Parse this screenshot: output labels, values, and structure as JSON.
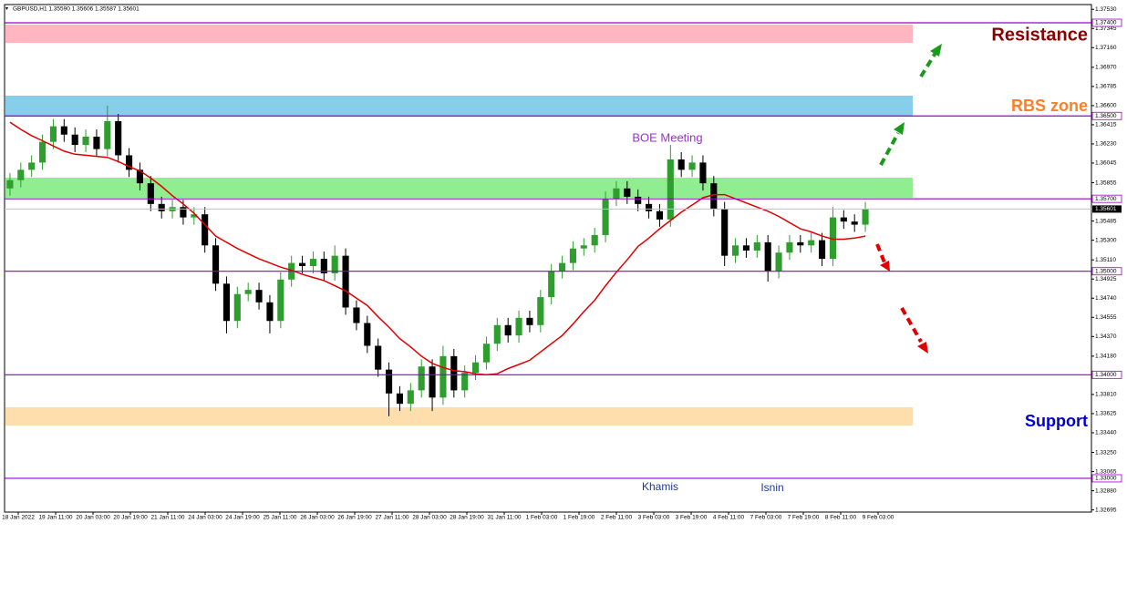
{
  "chart_data": {
    "type": "candlestick",
    "header": "GBPUSD,H1  1.35590 1.35606 1.35587 1.35601",
    "ylim": [
      1.32674,
      1.37576
    ],
    "yticks": [
      {
        "value": 1.3753,
        "label": "1.37530"
      },
      {
        "value": 1.37345,
        "label": "1.37345"
      },
      {
        "value": 1.3716,
        "label": "1.37160"
      },
      {
        "value": 1.3697,
        "label": "1.36970"
      },
      {
        "value": 1.36785,
        "label": "1.36785"
      },
      {
        "value": 1.366,
        "label": "1.36600"
      },
      {
        "value": 1.36415,
        "label": "1.36415"
      },
      {
        "value": 1.3623,
        "label": "1.36230"
      },
      {
        "value": 1.36045,
        "label": "1.36045"
      },
      {
        "value": 1.35855,
        "label": "1.35855"
      },
      {
        "value": 1.35485,
        "label": "1.35485"
      },
      {
        "value": 1.353,
        "label": "1.35300"
      },
      {
        "value": 1.3511,
        "label": "1.35110"
      },
      {
        "value": 1.34925,
        "label": "1.34925"
      },
      {
        "value": 1.3474,
        "label": "1.34740"
      },
      {
        "value": 1.34555,
        "label": "1.34555"
      },
      {
        "value": 1.3437,
        "label": "1.34370"
      },
      {
        "value": 1.3418,
        "label": "1.34180"
      },
      {
        "value": 1.3381,
        "label": "1.33810"
      },
      {
        "value": 1.33625,
        "label": "1.33625"
      },
      {
        "value": 1.3344,
        "label": "1.33440"
      },
      {
        "value": 1.3325,
        "label": "1.33250"
      },
      {
        "value": 1.33065,
        "label": "1.33065"
      },
      {
        "value": 1.3288,
        "label": "1.32880"
      },
      {
        "value": 1.32695,
        "label": "1.32695"
      }
    ],
    "x_labels": [
      "18 Jan 2022",
      "19 Jan 11:00",
      "20 Jan 03:00",
      "20 Jan 19:00",
      "21 Jan 11:00",
      "24 Jan 03:00",
      "24 Jan 19:00",
      "25 Jan 11:00",
      "26 Jan 03:00",
      "26 Jan 19:00",
      "27 Jan 11:00",
      "28 Jan 03:00",
      "28 Jan 19:00",
      "31 Jan 11:00",
      "1 Feb 03:00",
      "1 Feb 19:00",
      "2 Feb 11:00",
      "3 Feb 03:00",
      "3 Feb 19:00",
      "4 Feb 11:00",
      "7 Feb 03:00",
      "7 Feb 19:00",
      "8 Feb 11:00",
      "9 Feb 03:00"
    ],
    "levels": [
      {
        "value": 1.374,
        "label": "1.37400"
      },
      {
        "value": 1.365,
        "label": "1.36500"
      },
      {
        "value": 1.357,
        "label": "1.35700"
      },
      {
        "value": 1.35,
        "label": "1.35000"
      },
      {
        "value": 1.34,
        "label": "1.34000"
      },
      {
        "value": 1.33,
        "label": "1.33000"
      }
    ],
    "level_color": "#9900cc",
    "current_price": {
      "value": 1.35601,
      "label": "1.35601"
    },
    "zones": [
      {
        "from": 1.37206,
        "to": 1.37382,
        "color": "#ffb6c1"
      },
      {
        "from": 1.36493,
        "to": 1.36696,
        "color": "#87ceeb"
      },
      {
        "from": 1.3571,
        "to": 1.35904,
        "color": "#90ee90"
      },
      {
        "from": 1.3351,
        "to": 1.33686,
        "color": "#ffdead"
      }
    ],
    "up_color": "#2e9e2e",
    "down_color": "#000000",
    "ma_color": "#e00000",
    "open": [
      1.358,
      1.3588,
      1.3598,
      1.3605,
      1.3625,
      1.364,
      1.3632,
      1.3622,
      1.363,
      1.3618,
      1.3645,
      1.3612,
      1.3598,
      1.3585,
      1.3565,
      1.3558,
      1.3562,
      1.3552,
      1.3555,
      1.3525,
      1.3488,
      1.3452,
      1.3478,
      1.3482,
      1.347,
      1.3452,
      1.3492,
      1.3508,
      1.3505,
      1.3512,
      1.3498,
      1.3515,
      1.3465,
      1.345,
      1.3428,
      1.3405,
      1.3382,
      1.3372,
      1.3385,
      1.3408,
      1.3378,
      1.3418,
      1.3385,
      1.3402,
      1.3412,
      1.343,
      1.3448,
      1.3438,
      1.3455,
      1.3448,
      1.3475,
      1.35,
      1.3508,
      1.3522,
      1.3525,
      1.3535,
      1.357,
      1.358,
      1.3572,
      1.3565,
      1.3558,
      1.355,
      1.3608,
      1.3598,
      1.3605,
      1.3585,
      1.356,
      1.3515,
      1.3525,
      1.352,
      1.3528,
      1.35,
      1.3518,
      1.3528,
      1.3525,
      1.353,
      1.3512,
      1.3552,
      1.3548,
      1.3545
    ],
    "high": [
      1.3595,
      1.3605,
      1.3612,
      1.3632,
      1.3647,
      1.3647,
      1.3639,
      1.3637,
      1.3637,
      1.366,
      1.3652,
      1.3619,
      1.3605,
      1.3592,
      1.3572,
      1.3569,
      1.3569,
      1.3562,
      1.3562,
      1.3532,
      1.3495,
      1.3485,
      1.3489,
      1.3489,
      1.3477,
      1.3499,
      1.3515,
      1.3515,
      1.3519,
      1.3519,
      1.3525,
      1.3522,
      1.3472,
      1.3457,
      1.3435,
      1.3412,
      1.3389,
      1.3392,
      1.3415,
      1.3415,
      1.3428,
      1.3425,
      1.3409,
      1.3419,
      1.3437,
      1.3455,
      1.3455,
      1.3462,
      1.3462,
      1.3482,
      1.3507,
      1.3515,
      1.3529,
      1.3532,
      1.3542,
      1.3577,
      1.3587,
      1.3587,
      1.3579,
      1.3572,
      1.3565,
      1.3622,
      1.3615,
      1.3612,
      1.3612,
      1.3592,
      1.3567,
      1.3532,
      1.3532,
      1.3535,
      1.3535,
      1.3525,
      1.3535,
      1.3535,
      1.3537,
      1.3537,
      1.3562,
      1.3559,
      1.3555,
      1.3567
    ],
    "low": [
      1.3573,
      1.3581,
      1.3591,
      1.3598,
      1.3618,
      1.3625,
      1.3615,
      1.3615,
      1.3611,
      1.3611,
      1.3605,
      1.3591,
      1.3578,
      1.3558,
      1.3551,
      1.3551,
      1.3545,
      1.3545,
      1.3518,
      1.3481,
      1.344,
      1.3445,
      1.3471,
      1.3463,
      1.344,
      1.3445,
      1.3485,
      1.3498,
      1.3498,
      1.3491,
      1.3491,
      1.3458,
      1.3443,
      1.3421,
      1.3398,
      1.336,
      1.3365,
      1.3365,
      1.3378,
      1.3365,
      1.3371,
      1.3378,
      1.3378,
      1.3395,
      1.3405,
      1.3423,
      1.3431,
      1.3431,
      1.3441,
      1.3441,
      1.3468,
      1.3493,
      1.3501,
      1.3515,
      1.3518,
      1.3528,
      1.3563,
      1.3565,
      1.3558,
      1.3551,
      1.3543,
      1.3543,
      1.3591,
      1.3591,
      1.3578,
      1.3553,
      1.3505,
      1.3508,
      1.3513,
      1.3513,
      1.349,
      1.3493,
      1.3511,
      1.3518,
      1.3518,
      1.3505,
      1.3505,
      1.3541,
      1.3538,
      1.3538
    ],
    "close": [
      1.3588,
      1.3598,
      1.3605,
      1.3625,
      1.364,
      1.3632,
      1.3622,
      1.363,
      1.3618,
      1.3645,
      1.3612,
      1.3598,
      1.3585,
      1.3565,
      1.3558,
      1.3562,
      1.3552,
      1.3555,
      1.3525,
      1.3488,
      1.3452,
      1.3478,
      1.3482,
      1.347,
      1.3452,
      1.3492,
      1.3508,
      1.3505,
      1.3512,
      1.3498,
      1.3515,
      1.3465,
      1.345,
      1.3428,
      1.3405,
      1.3382,
      1.3372,
      1.3385,
      1.3408,
      1.3378,
      1.3418,
      1.3385,
      1.3402,
      1.3412,
      1.343,
      1.3448,
      1.3438,
      1.3455,
      1.3448,
      1.3475,
      1.35,
      1.3508,
      1.3522,
      1.3525,
      1.3535,
      1.357,
      1.358,
      1.3572,
      1.3565,
      1.3558,
      1.355,
      1.3608,
      1.3598,
      1.3605,
      1.3585,
      1.356,
      1.3515,
      1.3525,
      1.352,
      1.3528,
      1.35,
      1.3518,
      1.3528,
      1.3525,
      1.353,
      1.3512,
      1.3552,
      1.3548,
      1.3545,
      1.356
    ],
    "ma": [
      1.3644,
      1.3637,
      1.3631,
      1.3626,
      1.3621,
      1.3616,
      1.3613,
      1.3612,
      1.3611,
      1.361,
      1.3606,
      1.3601,
      1.3597,
      1.359,
      1.3582,
      1.3573,
      1.3565,
      1.3556,
      1.3545,
      1.3534,
      1.3528,
      1.3522,
      1.3517,
      1.3512,
      1.3508,
      1.3504,
      1.3501,
      1.3497,
      1.3494,
      1.3491,
      1.3486,
      1.3481,
      1.3474,
      1.3467,
      1.3456,
      1.3446,
      1.3435,
      1.3427,
      1.3418,
      1.3411,
      1.3407,
      1.3404,
      1.3403,
      1.3401,
      1.34,
      1.3401,
      1.3406,
      1.341,
      1.3414,
      1.3422,
      1.343,
      1.3438,
      1.3449,
      1.3461,
      1.3472,
      1.3486,
      1.3499,
      1.3511,
      1.3524,
      1.3532,
      1.3541,
      1.3549,
      1.3557,
      1.3564,
      1.3571,
      1.3574,
      1.3574,
      1.357,
      1.3566,
      1.3562,
      1.3558,
      1.3553,
      1.3547,
      1.3541,
      1.3538,
      1.3534,
      1.3531,
      1.3531,
      1.3532,
      1.3534
    ],
    "annotations": {
      "boe": "BOE Meeting",
      "khamis": "Khamis",
      "isnin": "Isnin",
      "resistance": "Resistance",
      "rbs": "RBS zone",
      "support": "Support"
    }
  }
}
